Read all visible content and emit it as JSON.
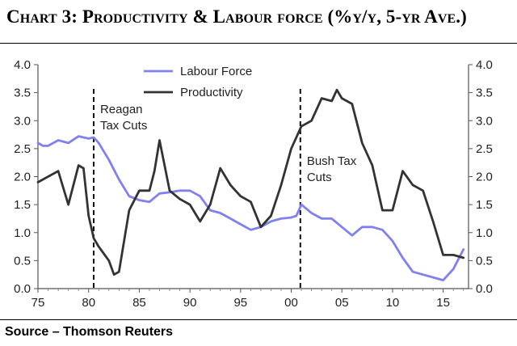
{
  "title": "Chart 3: Productivity & Labour force (%y/y, 5-yr Ave.)",
  "source": "Source – Thomson Reuters",
  "chart_data": {
    "type": "line",
    "title": "Chart 3: Productivity & Labour force (%y/y, 5-yr Ave.)",
    "xlabel": "",
    "ylabel": "",
    "xlim": [
      1975,
      2017.5
    ],
    "ylim": [
      0,
      4
    ],
    "x_ticks": [
      75,
      80,
      85,
      90,
      95,
      "00",
      "05",
      10,
      15
    ],
    "x_tick_values": [
      1975,
      1980,
      1985,
      1990,
      1995,
      2000,
      2005,
      2010,
      2015
    ],
    "y_ticks": [
      "0.0",
      "0.5",
      "1.0",
      "1.5",
      "2.0",
      "2.5",
      "3.0",
      "3.5",
      "4.0"
    ],
    "y_tick_values": [
      0,
      0.5,
      1,
      1.5,
      2,
      2.5,
      3,
      3.5,
      4
    ],
    "grid": false,
    "legend": "top-center",
    "series": [
      {
        "name": "Labour Force",
        "color": "#8080f0",
        "x": [
          1975,
          1975.5,
          1976,
          1977,
          1978,
          1979,
          1980,
          1980.5,
          1981,
          1982,
          1983,
          1984,
          1985,
          1986,
          1987,
          1988,
          1989,
          1990,
          1991,
          1992,
          1993,
          1994,
          1995,
          1996,
          1997,
          1998,
          1999,
          2000,
          2000.5,
          2001,
          2002,
          2003,
          2004,
          2005,
          2006,
          2007,
          2008,
          2009,
          2010,
          2011,
          2012,
          2013,
          2014,
          2015,
          2016,
          2017
        ],
        "y": [
          2.6,
          2.55,
          2.55,
          2.65,
          2.6,
          2.72,
          2.68,
          2.7,
          2.6,
          2.3,
          1.95,
          1.65,
          1.58,
          1.55,
          1.7,
          1.72,
          1.75,
          1.75,
          1.65,
          1.4,
          1.35,
          1.25,
          1.15,
          1.05,
          1.1,
          1.2,
          1.25,
          1.27,
          1.3,
          1.5,
          1.35,
          1.25,
          1.25,
          1.1,
          0.95,
          1.1,
          1.1,
          1.05,
          0.85,
          0.55,
          0.3,
          0.25,
          0.2,
          0.15,
          0.35,
          0.7
        ]
      },
      {
        "name": "Productivity",
        "color": "#333333",
        "x": [
          1975,
          1976,
          1977,
          1978,
          1979,
          1979.5,
          1980,
          1980.5,
          1981,
          1982,
          1982.5,
          1983,
          1984,
          1985,
          1986,
          1986.5,
          1987,
          1988,
          1989,
          1990,
          1991,
          1992,
          1993,
          1994,
          1995,
          1996,
          1997,
          1998,
          1999,
          2000,
          2001,
          2002,
          2003,
          2004,
          2004.5,
          2005,
          2006,
          2007,
          2008,
          2009,
          2010,
          2011,
          2012,
          2013,
          2014,
          2015,
          2016,
          2017
        ],
        "y": [
          1.9,
          2.0,
          2.1,
          1.5,
          2.2,
          2.15,
          1.3,
          0.9,
          0.75,
          0.5,
          0.25,
          0.3,
          1.4,
          1.75,
          1.75,
          2.1,
          2.65,
          1.75,
          1.6,
          1.5,
          1.2,
          1.5,
          2.15,
          1.85,
          1.65,
          1.55,
          1.1,
          1.3,
          1.85,
          2.5,
          2.9,
          3.0,
          3.4,
          3.35,
          3.55,
          3.4,
          3.3,
          2.6,
          2.2,
          1.4,
          1.4,
          2.1,
          1.85,
          1.75,
          1.2,
          0.6,
          0.6,
          0.55
        ]
      }
    ],
    "vlines": [
      {
        "x": 1980.5,
        "label_lines": [
          "Reagan",
          "Tax Cuts"
        ]
      },
      {
        "x": 2000.9,
        "label_lines": [
          "Bush Tax",
          "Cuts"
        ]
      }
    ]
  }
}
